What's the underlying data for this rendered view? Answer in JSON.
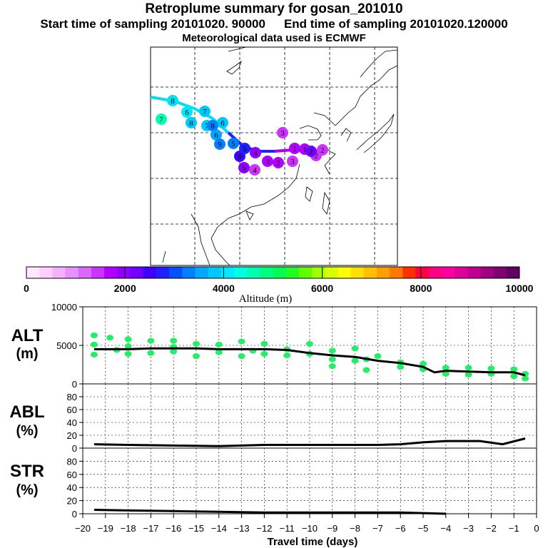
{
  "title": "Retroplume summary for gosan_201010",
  "start_label": "Start time of sampling 20101020. 90000",
  "end_label": "End time of sampling 20101020.120000",
  "met_label": "Meteorological data used is ECMWF",
  "colorbar": {
    "label": "Altitude (m)",
    "ticks": [
      "0",
      "2000",
      "4000",
      "6000",
      "8000",
      "10000"
    ],
    "colors": [
      "#ffe8ff",
      "#ffd0ff",
      "#f4b0ff",
      "#e890ff",
      "#dd66ff",
      "#cc33ff",
      "#b000ff",
      "#9000ff",
      "#7000ff",
      "#4000ff",
      "#2020ff",
      "#0050ff",
      "#0080ff",
      "#00a8ff",
      "#00c8ff",
      "#00e8ff",
      "#00ffe0",
      "#00ffb0",
      "#00ff80",
      "#00ff50",
      "#20ff20",
      "#60ff00",
      "#a0ff00",
      "#d8ff00",
      "#ffff00",
      "#ffe000",
      "#ffc000",
      "#ffa000",
      "#ff7800",
      "#ff3000",
      "#ff0040",
      "#ff0080",
      "#ff00a0",
      "#e0009a",
      "#c00090",
      "#a00080",
      "#800070",
      "#600060"
    ]
  },
  "map": {
    "markers": [
      {
        "label": "8",
        "color": "#00e0f0"
      },
      {
        "label": "7",
        "color": "#00ffb0"
      },
      {
        "label": "6",
        "color": "#00e8ff"
      },
      {
        "label": "7",
        "color": "#00c8ff"
      },
      {
        "label": "6",
        "color": "#00c8ff"
      },
      {
        "label": "8",
        "color": "#00c8ff"
      },
      {
        "label": "6",
        "color": "#00a8ff"
      },
      {
        "label": "9",
        "color": "#0080ff"
      },
      {
        "label": "5",
        "color": "#0080ff"
      },
      {
        "label": "6",
        "color": "#4000ff"
      },
      {
        "label": "5",
        "color": "#2020ff"
      },
      {
        "label": "4",
        "color": "#9000ff"
      },
      {
        "label": "5",
        "color": "#9000ff"
      },
      {
        "label": "4",
        "color": "#cc33ff"
      },
      {
        "label": "3",
        "color": "#b000ff"
      },
      {
        "label": "2",
        "color": "#b000ff"
      },
      {
        "label": "3",
        "color": "#cc33ff"
      },
      {
        "label": "1",
        "color": "#b000ff"
      },
      {
        "label": "2",
        "color": "#cc33ff"
      },
      {
        "label": "1",
        "color": "#b000ff"
      },
      {
        "label": "2",
        "color": "#cc33ff"
      },
      {
        "label": "7",
        "color": "#00c8ff"
      },
      {
        "label": "8",
        "color": "#0080ff"
      },
      {
        "label": "2",
        "color": "#7000ff"
      },
      {
        "label": "3",
        "color": "#cc33ff"
      }
    ]
  },
  "chart_data": [
    {
      "type": "line",
      "name": "ALT",
      "ylabel": "ALT",
      "yunit": "(m)",
      "ylim": [
        0,
        10000
      ],
      "yticks": [
        "0",
        "5000",
        "10000"
      ],
      "x": [
        -19.5,
        -19,
        -18,
        -17,
        -16,
        -15,
        -14,
        -13,
        -12,
        -11,
        -10,
        -9,
        -8,
        -7,
        -6,
        -5,
        -4.5,
        -4,
        -3,
        -2,
        -1,
        -0.5
      ],
      "values": [
        4500,
        4500,
        4500,
        4600,
        4600,
        4600,
        4500,
        4500,
        4500,
        4400,
        4000,
        3700,
        3500,
        3000,
        2700,
        2200,
        1500,
        1700,
        1600,
        1500,
        1500,
        1100
      ],
      "scatter_x": [
        -19.5,
        -19.5,
        -19.5,
        -18.8,
        -18.5,
        -18,
        -18,
        -18,
        -17,
        -17,
        -16,
        -16,
        -16,
        -15,
        -15,
        -14,
        -14,
        -13,
        -13,
        -12.5,
        -12,
        -12,
        -11,
        -11,
        -10,
        -10,
        -9,
        -9,
        -9,
        -8,
        -8,
        -7.5,
        -7.5,
        -7,
        -6,
        -6,
        -5,
        -5,
        -4,
        -4,
        -3,
        -3,
        -2,
        -2,
        -1,
        -1,
        -0.5,
        -0.5
      ],
      "scatter_y": [
        6300,
        5100,
        3800,
        6000,
        4400,
        5800,
        4900,
        3900,
        5600,
        4000,
        5600,
        4800,
        4200,
        5200,
        3600,
        5100,
        4100,
        5500,
        3600,
        4300,
        5200,
        3900,
        4500,
        3700,
        5200,
        3900,
        4300,
        3200,
        2300,
        4600,
        3000,
        3200,
        1800,
        3600,
        2800,
        2200,
        2600,
        1900,
        2100,
        1300,
        2100,
        1200,
        2000,
        1300,
        1900,
        1000,
        1300,
        700
      ]
    },
    {
      "type": "line",
      "name": "ABL",
      "ylabel": "ABL",
      "yunit": "(%)",
      "ylim": [
        0,
        100
      ],
      "yticks": [
        "0",
        "20",
        "40",
        "60",
        "80"
      ],
      "x": [
        -19.5,
        -18,
        -16,
        -14,
        -13,
        -12,
        -11,
        -10,
        -9,
        -8,
        -7,
        -6,
        -5,
        -4,
        -3,
        -2.5,
        -1.5,
        -0.5
      ],
      "values": [
        6,
        5,
        4,
        3,
        4,
        5,
        5,
        5,
        5,
        5,
        5,
        6,
        9,
        11,
        11,
        11,
        6,
        15
      ]
    },
    {
      "type": "line",
      "name": "STR",
      "ylabel": "STR",
      "yunit": "(%)",
      "ylim": [
        0,
        100
      ],
      "yticks": [
        "0",
        "20",
        "40",
        "60",
        "80"
      ],
      "x": [
        -19.5,
        -18,
        -16,
        -14,
        -12,
        -10,
        -8,
        -6,
        -4
      ],
      "values": [
        6,
        5,
        4,
        3,
        2,
        2,
        2,
        2,
        0
      ]
    }
  ],
  "xaxis": {
    "label": "Travel time (days)",
    "ticks": [
      "−20",
      "−19",
      "−18",
      "−17",
      "−16",
      "−15",
      "−14",
      "−13",
      "−12",
      "−11",
      "−10",
      "−9",
      "−8",
      "−7",
      "−6",
      "−5",
      "−4",
      "−3",
      "−2",
      "−1",
      "0"
    ]
  }
}
